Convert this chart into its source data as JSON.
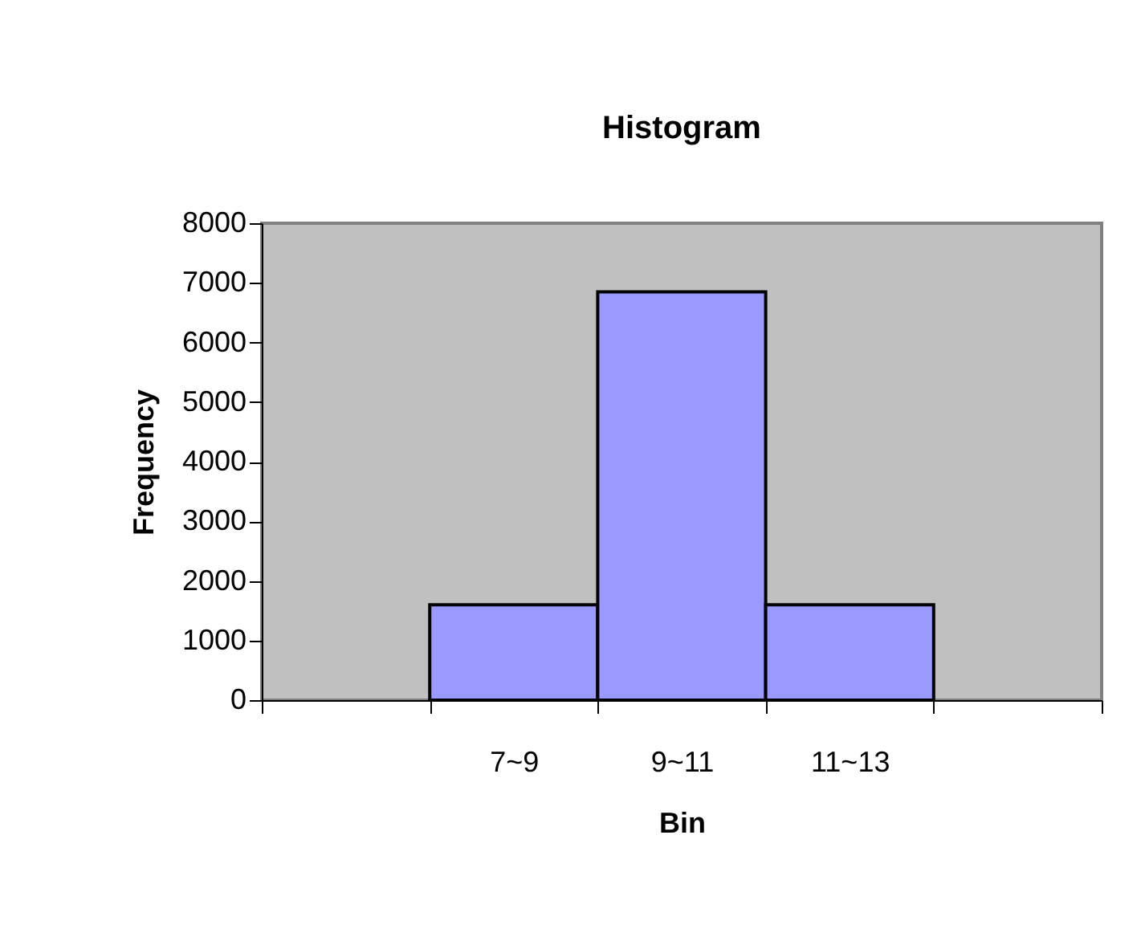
{
  "chart_data": {
    "type": "bar",
    "title": "Histogram",
    "xlabel": "Bin",
    "ylabel": "Frequency",
    "categories": [
      null,
      "7~9",
      "9~11",
      "11~13",
      null
    ],
    "values": [
      null,
      1600,
      6850,
      1600,
      null
    ],
    "color": "#9999ff",
    "ylim": [
      0,
      8000
    ],
    "yticks": [
      0,
      1000,
      2000,
      3000,
      4000,
      5000,
      6000,
      7000,
      8000
    ],
    "grid": false
  }
}
